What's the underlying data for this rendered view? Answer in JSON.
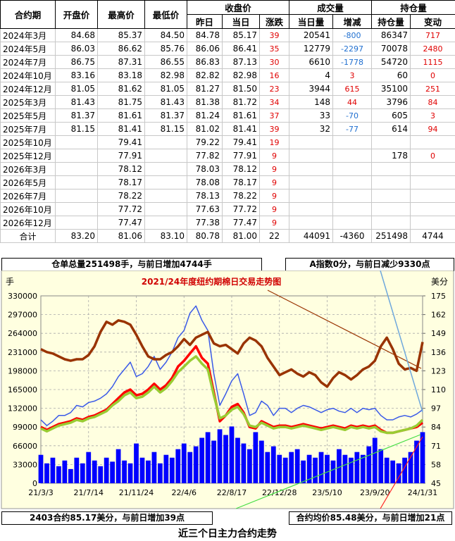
{
  "table": {
    "group_headers": [
      "收盘价",
      "成交量",
      "持仓量"
    ],
    "columns": [
      "合约期",
      "开盘价",
      "最高价",
      "最低价",
      "昨日",
      "当日",
      "涨跌",
      "当日量",
      "增减",
      "持仓量",
      "变动"
    ],
    "rows": [
      [
        "2024年3月",
        "84.68",
        "85.37",
        "84.50",
        "84.78",
        "85.17",
        "39",
        "20541",
        "-800",
        "86347",
        "717"
      ],
      [
        "2024年5月",
        "86.03",
        "86.62",
        "85.76",
        "86.06",
        "86.41",
        "35",
        "12779",
        "-2297",
        "70078",
        "2480"
      ],
      [
        "2024年7月",
        "86.75",
        "87.31",
        "86.55",
        "86.83",
        "87.13",
        "30",
        "6610",
        "-1778",
        "54720",
        "1115"
      ],
      [
        "2024年10月",
        "83.16",
        "83.18",
        "82.98",
        "82.82",
        "82.98",
        "16",
        "4",
        "3",
        "60",
        "0"
      ],
      [
        "2024年12月",
        "81.05",
        "81.62",
        "81.05",
        "81.27",
        "81.50",
        "23",
        "3944",
        "615",
        "35100",
        "251"
      ],
      [
        "2025年3月",
        "81.43",
        "81.75",
        "81.43",
        "81.38",
        "81.72",
        "34",
        "148",
        "44",
        "3796",
        "84"
      ],
      [
        "2025年5月",
        "81.37",
        "81.61",
        "81.37",
        "81.24",
        "81.61",
        "37",
        "33",
        "-70",
        "605",
        "3"
      ],
      [
        "2025年7月",
        "81.15",
        "81.41",
        "81.15",
        "81.02",
        "81.41",
        "39",
        "32",
        "-77",
        "614",
        "94"
      ],
      [
        "2025年10月",
        null,
        "79.41",
        null,
        "79.22",
        "79.41",
        "19",
        null,
        null,
        null,
        null
      ],
      [
        "2025年12月",
        null,
        "77.91",
        null,
        "77.82",
        "77.91",
        "9",
        null,
        null,
        "178",
        "0"
      ],
      [
        "2026年3月",
        null,
        "78.12",
        null,
        "78.03",
        "78.12",
        "9",
        null,
        null,
        null,
        null
      ],
      [
        "2026年5月",
        null,
        "78.17",
        null,
        "78.08",
        "78.17",
        "9",
        null,
        null,
        null,
        null
      ],
      [
        "2026年7月",
        null,
        "78.22",
        null,
        "78.13",
        "78.22",
        "9",
        null,
        null,
        null,
        null
      ],
      [
        "2026年10月",
        null,
        "77.72",
        null,
        "77.63",
        "77.72",
        "9",
        null,
        null,
        null,
        null
      ],
      [
        "2026年12月",
        null,
        "77.47",
        null,
        "77.38",
        "77.47",
        "9",
        null,
        null,
        null,
        null
      ]
    ],
    "total": [
      "合计",
      "83.20",
      "81.06",
      "83.10",
      "80.78",
      "81.00",
      "22",
      "44091",
      "-4360",
      "251498",
      "4744"
    ]
  },
  "notes": {
    "warehouse": "仓单总量251498手，与前日增加4744手",
    "a_index": "A指数0分，与前日减少9330点",
    "front_contract": "2403合约85.17美分，与前日增加39点",
    "average": "合约均价85.48美分，与前日增加21点",
    "caption": "近三个日主力合约走势"
  },
  "chart_data": {
    "type": "line",
    "title": "2021/24年度纽约期棉日交易走势图",
    "y_label": "手",
    "y2_label": "美分",
    "grid": true,
    "categories": [
      "21/3/3",
      null,
      null,
      null,
      null,
      null,
      null,
      null,
      "21/7/14",
      null,
      null,
      null,
      null,
      null,
      null,
      null,
      "21/11/24",
      null,
      null,
      null,
      null,
      null,
      null,
      null,
      "22/4/6",
      null,
      null,
      null,
      null,
      null,
      null,
      null,
      "22/8/17",
      null,
      null,
      null,
      null,
      null,
      null,
      null,
      "22/12/28",
      null,
      null,
      null,
      null,
      null,
      null,
      null,
      "23/5/10",
      null,
      null,
      null,
      null,
      null,
      null,
      null,
      "23/9/20",
      null,
      null,
      null,
      null,
      null,
      null,
      null,
      "24/1/31"
    ],
    "ylim": [
      0,
      330000
    ],
    "yticks": [
      0,
      33000,
      66000,
      99000,
      132000,
      165000,
      198000,
      231000,
      264000,
      297000,
      330000
    ],
    "y2lim": [
      45,
      175
    ],
    "y2ticks": [
      45,
      58,
      71,
      84,
      97,
      110,
      123,
      136,
      149,
      162,
      175
    ],
    "series": [
      {
        "type": "bar",
        "color": "#0000ff",
        "values": [
          50000,
          35000,
          45000,
          30000,
          40000,
          25000,
          45000,
          35000,
          55000,
          40000,
          30000,
          45000,
          38000,
          60000,
          40000,
          35000,
          70000,
          45000,
          40000,
          55000,
          35000,
          50000,
          45000,
          60000,
          70000,
          55000,
          65000,
          80000,
          90000,
          75000,
          95000,
          85000,
          100000,
          80000,
          70000,
          60000,
          90000,
          75000,
          55000,
          65000,
          50000,
          45000,
          55000,
          60000,
          40000,
          50000,
          45000,
          55000,
          50000,
          40000,
          60000,
          50000,
          45000,
          55000,
          50000,
          65000,
          80000,
          60000,
          45000,
          40000,
          35000,
          45000,
          55000,
          75000,
          90000
        ]
      },
      {
        "type": "line",
        "axis": "y2",
        "color": "#3a5ae8",
        "values": [
          89,
          85,
          88,
          92,
          92,
          94,
          99,
          98,
          101,
          102,
          104,
          107,
          112,
          119,
          124,
          129,
          119,
          121,
          126,
          133,
          124,
          129,
          136,
          146,
          151,
          163,
          168,
          158,
          151,
          121,
          99,
          107,
          116,
          121,
          107,
          92,
          94,
          102,
          99,
          92,
          97,
          97,
          94,
          97,
          99,
          98,
          96,
          94,
          96,
          97,
          95,
          94,
          97,
          94,
          97,
          96,
          97,
          92,
          89,
          89,
          91,
          92,
          91,
          93,
          96
        ]
      },
      {
        "type": "line",
        "axis": "y2",
        "color": "#ff0000",
        "values": [
          84,
          82,
          84,
          86,
          87,
          88,
          90,
          89,
          91,
          92,
          94,
          96,
          100,
          104,
          108,
          110,
          106,
          107,
          110,
          114,
          110,
          113,
          118,
          126,
          130,
          135,
          140,
          132,
          128,
          108,
          88,
          92,
          98,
          100,
          94,
          84,
          83,
          88,
          86,
          84,
          85,
          85,
          84,
          85,
          86,
          85,
          84,
          83,
          84,
          85,
          84,
          83,
          85,
          84,
          85,
          84,
          85,
          82,
          80,
          80,
          81,
          82,
          83,
          84,
          87
        ]
      },
      {
        "type": "line",
        "axis": "y2",
        "color": "#99cc33",
        "values": [
          83,
          81,
          83,
          85,
          86,
          87,
          89,
          88,
          90,
          91,
          93,
          95,
          99,
          102,
          106,
          108,
          104,
          105,
          108,
          112,
          108,
          111,
          116,
          122,
          126,
          130,
          133,
          128,
          124,
          106,
          90,
          92,
          96,
          98,
          93,
          85,
          84,
          87,
          85,
          83,
          84,
          84,
          83,
          84,
          85,
          84,
          83,
          82,
          83,
          84,
          83,
          82,
          84,
          83,
          84,
          83,
          84,
          81,
          80,
          80,
          81,
          82,
          83,
          85,
          89
        ]
      },
      {
        "type": "line",
        "axis": "y2",
        "color": "#993300",
        "values": [
          138,
          136,
          135,
          133,
          131,
          130,
          131,
          131,
          134,
          140,
          150,
          157,
          155,
          158,
          157,
          155,
          148,
          140,
          133,
          131,
          131,
          134,
          136,
          140,
          145,
          141,
          146,
          148,
          150,
          142,
          140,
          141,
          138,
          135,
          142,
          146,
          144,
          140,
          132,
          126,
          120,
          122,
          124,
          121,
          119,
          122,
          120,
          115,
          112,
          118,
          122,
          120,
          117,
          120,
          124,
          126,
          130,
          140,
          146,
          138,
          128,
          124,
          125,
          123,
          143
        ]
      }
    ]
  }
}
